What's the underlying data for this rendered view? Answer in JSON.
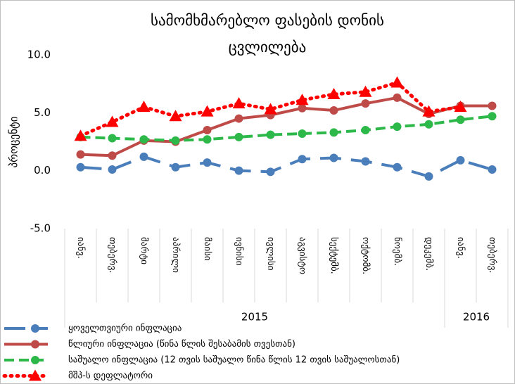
{
  "chart_data": {
    "type": "line",
    "title": [
      "სამომხმარებლო ფასების დონის",
      "ცვლილება"
    ],
    "y_label": "პროცენტი",
    "categories": [
      "იანვ.",
      "თებერვ.",
      "მარტი",
      "აპრილი",
      "მაისი",
      "ივნისი",
      "ივლისი",
      "აგვისტო",
      "სექტემბ.",
      "ოქტომბ.",
      "ნოემბ.",
      "დეკემბ.",
      "იანვ.",
      "თებერვ."
    ],
    "x_groups": [
      "2015",
      "2016"
    ],
    "ylim": [
      -5,
      10
    ],
    "yticks": [
      {
        "value": 10,
        "label": "10.0"
      },
      {
        "value": 5,
        "label": "5.0"
      },
      {
        "value": 0,
        "label": "0.0"
      },
      {
        "value": -5,
        "label": "-5.0"
      }
    ],
    "series": [
      {
        "name": "ყოველთვიური ინფლაცია",
        "color": "#4a7ebb",
        "dash": "dash",
        "marker": "circle",
        "values": [
          0.3,
          0.1,
          1.2,
          0.3,
          0.7,
          0.0,
          -0.1,
          1.0,
          1.1,
          0.8,
          0.3,
          -0.5,
          0.9,
          0.1
        ]
      },
      {
        "name": "წლიური ინფლაცია (წინა წლის შესაბამის თვესთან)",
        "color": "#be4b48",
        "dash": "solid",
        "marker": "circle",
        "values": [
          1.4,
          1.3,
          2.6,
          2.5,
          3.5,
          4.5,
          4.8,
          5.4,
          5.2,
          5.8,
          6.3,
          4.9,
          5.6,
          5.6
        ]
      },
      {
        "name": "საშუალო ინფლაცია (12 თვის საშუალო წინა წლის 12 თვის საშუალოსთან)",
        "color": "#2db84a",
        "dash": "longdash",
        "marker": "circle",
        "values": [
          2.9,
          2.8,
          2.7,
          2.6,
          2.7,
          2.9,
          3.1,
          3.2,
          3.3,
          3.5,
          3.8,
          4.0,
          4.4,
          4.7
        ]
      },
      {
        "name": "მშპ-ს დეფლატორი",
        "color": "#ff0000",
        "dash": "dot",
        "marker": "triangle",
        "values": [
          3.0,
          4.2,
          5.5,
          4.7,
          5.1,
          5.8,
          5.3,
          6.1,
          6.6,
          6.8,
          7.6,
          5.1,
          5.5,
          null
        ]
      }
    ]
  }
}
